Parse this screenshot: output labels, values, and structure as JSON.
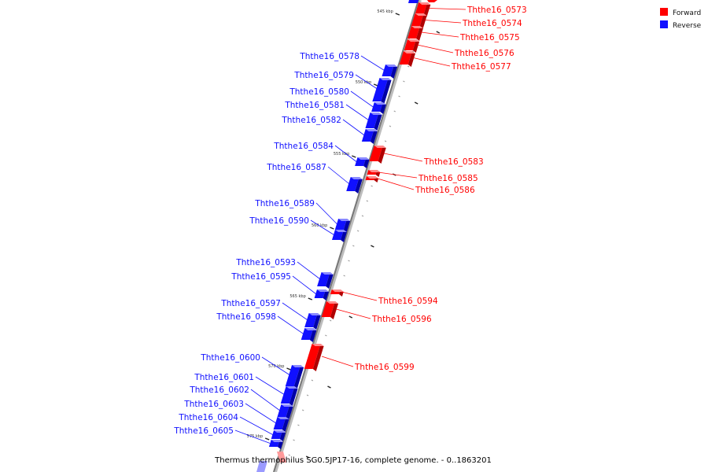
{
  "caption": "Thermus thermophilus SG0.5JP17-16, complete genome. - 0..1863201",
  "colors": {
    "forward": "#ff0000",
    "reverse": "#1010ff",
    "axis": "#777777"
  },
  "legend": [
    {
      "label": "Forward",
      "strand": "forward"
    },
    {
      "label": "Reverse",
      "strand": "reverse"
    }
  ],
  "ticks": [
    "545 kbp",
    "550 kbp",
    "555 kbp",
    "560 kbp",
    "565 kbp",
    "570 kbp",
    "575 kbp"
  ],
  "genes": [
    {
      "name": "Ththe16_0573",
      "strand": "forward"
    },
    {
      "name": "Ththe16_0574",
      "strand": "forward"
    },
    {
      "name": "Ththe16_0575",
      "strand": "forward"
    },
    {
      "name": "Ththe16_0576",
      "strand": "forward"
    },
    {
      "name": "Ththe16_0577",
      "strand": "forward"
    },
    {
      "name": "Ththe16_0578",
      "strand": "reverse"
    },
    {
      "name": "Ththe16_0579",
      "strand": "reverse"
    },
    {
      "name": "Ththe16_0580",
      "strand": "reverse"
    },
    {
      "name": "Ththe16_0581",
      "strand": "reverse"
    },
    {
      "name": "Ththe16_0582",
      "strand": "reverse"
    },
    {
      "name": "Ththe16_0583",
      "strand": "forward"
    },
    {
      "name": "Ththe16_0584",
      "strand": "reverse"
    },
    {
      "name": "Ththe16_0585",
      "strand": "forward"
    },
    {
      "name": "Ththe16_0586",
      "strand": "forward"
    },
    {
      "name": "Ththe16_0587",
      "strand": "reverse"
    },
    {
      "name": "Ththe16_0589",
      "strand": "reverse"
    },
    {
      "name": "Ththe16_0590",
      "strand": "reverse"
    },
    {
      "name": "Ththe16_0593",
      "strand": "reverse"
    },
    {
      "name": "Ththe16_0594",
      "strand": "forward"
    },
    {
      "name": "Ththe16_0595",
      "strand": "reverse"
    },
    {
      "name": "Ththe16_0596",
      "strand": "forward"
    },
    {
      "name": "Ththe16_0597",
      "strand": "reverse"
    },
    {
      "name": "Ththe16_0598",
      "strand": "reverse"
    },
    {
      "name": "Ththe16_0599",
      "strand": "forward"
    },
    {
      "name": "Ththe16_0600",
      "strand": "reverse"
    },
    {
      "name": "Ththe16_0601",
      "strand": "reverse"
    },
    {
      "name": "Ththe16_0602",
      "strand": "reverse"
    },
    {
      "name": "Ththe16_0603",
      "strand": "reverse"
    },
    {
      "name": "Ththe16_0604",
      "strand": "reverse"
    },
    {
      "name": "Ththe16_0605",
      "strand": "reverse"
    }
  ]
}
